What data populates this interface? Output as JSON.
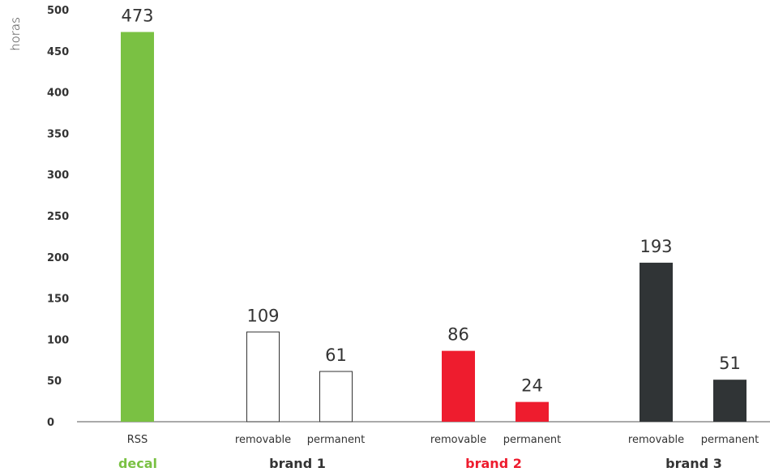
{
  "chart_data": {
    "type": "bar",
    "ylabel": "horas",
    "ylim": [
      0,
      500
    ],
    "yticks": [
      0,
      50,
      100,
      150,
      200,
      250,
      300,
      350,
      400,
      450,
      500
    ],
    "grid": false,
    "groups": [
      {
        "name": "decal",
        "color": "#7ac143"
      },
      {
        "name": "brand 1",
        "color": "#333333"
      },
      {
        "name": "brand 2",
        "color": "#ee1c2e"
      },
      {
        "name": "brand 3",
        "color": "#333333"
      }
    ],
    "bars": [
      {
        "group": "decal",
        "category": "RSS",
        "value": 473,
        "fill": "#7ac143",
        "stroke": "#7ac143"
      },
      {
        "group": "brand 1",
        "category": "removable",
        "value": 109,
        "fill": "#ffffff",
        "stroke": "#333333"
      },
      {
        "group": "brand 1",
        "category": "permanent",
        "value": 61,
        "fill": "#ffffff",
        "stroke": "#333333"
      },
      {
        "group": "brand 2",
        "category": "removable",
        "value": 86,
        "fill": "#ee1c2e",
        "stroke": "#ee1c2e"
      },
      {
        "group": "brand 2",
        "category": "permanent",
        "value": 24,
        "fill": "#ee1c2e",
        "stroke": "#ee1c2e"
      },
      {
        "group": "brand 3",
        "category": "removable",
        "value": 193,
        "fill": "#303436",
        "stroke": "#303436"
      },
      {
        "group": "brand 3",
        "category": "permanent",
        "value": 51,
        "fill": "#303436",
        "stroke": "#303436"
      }
    ]
  }
}
